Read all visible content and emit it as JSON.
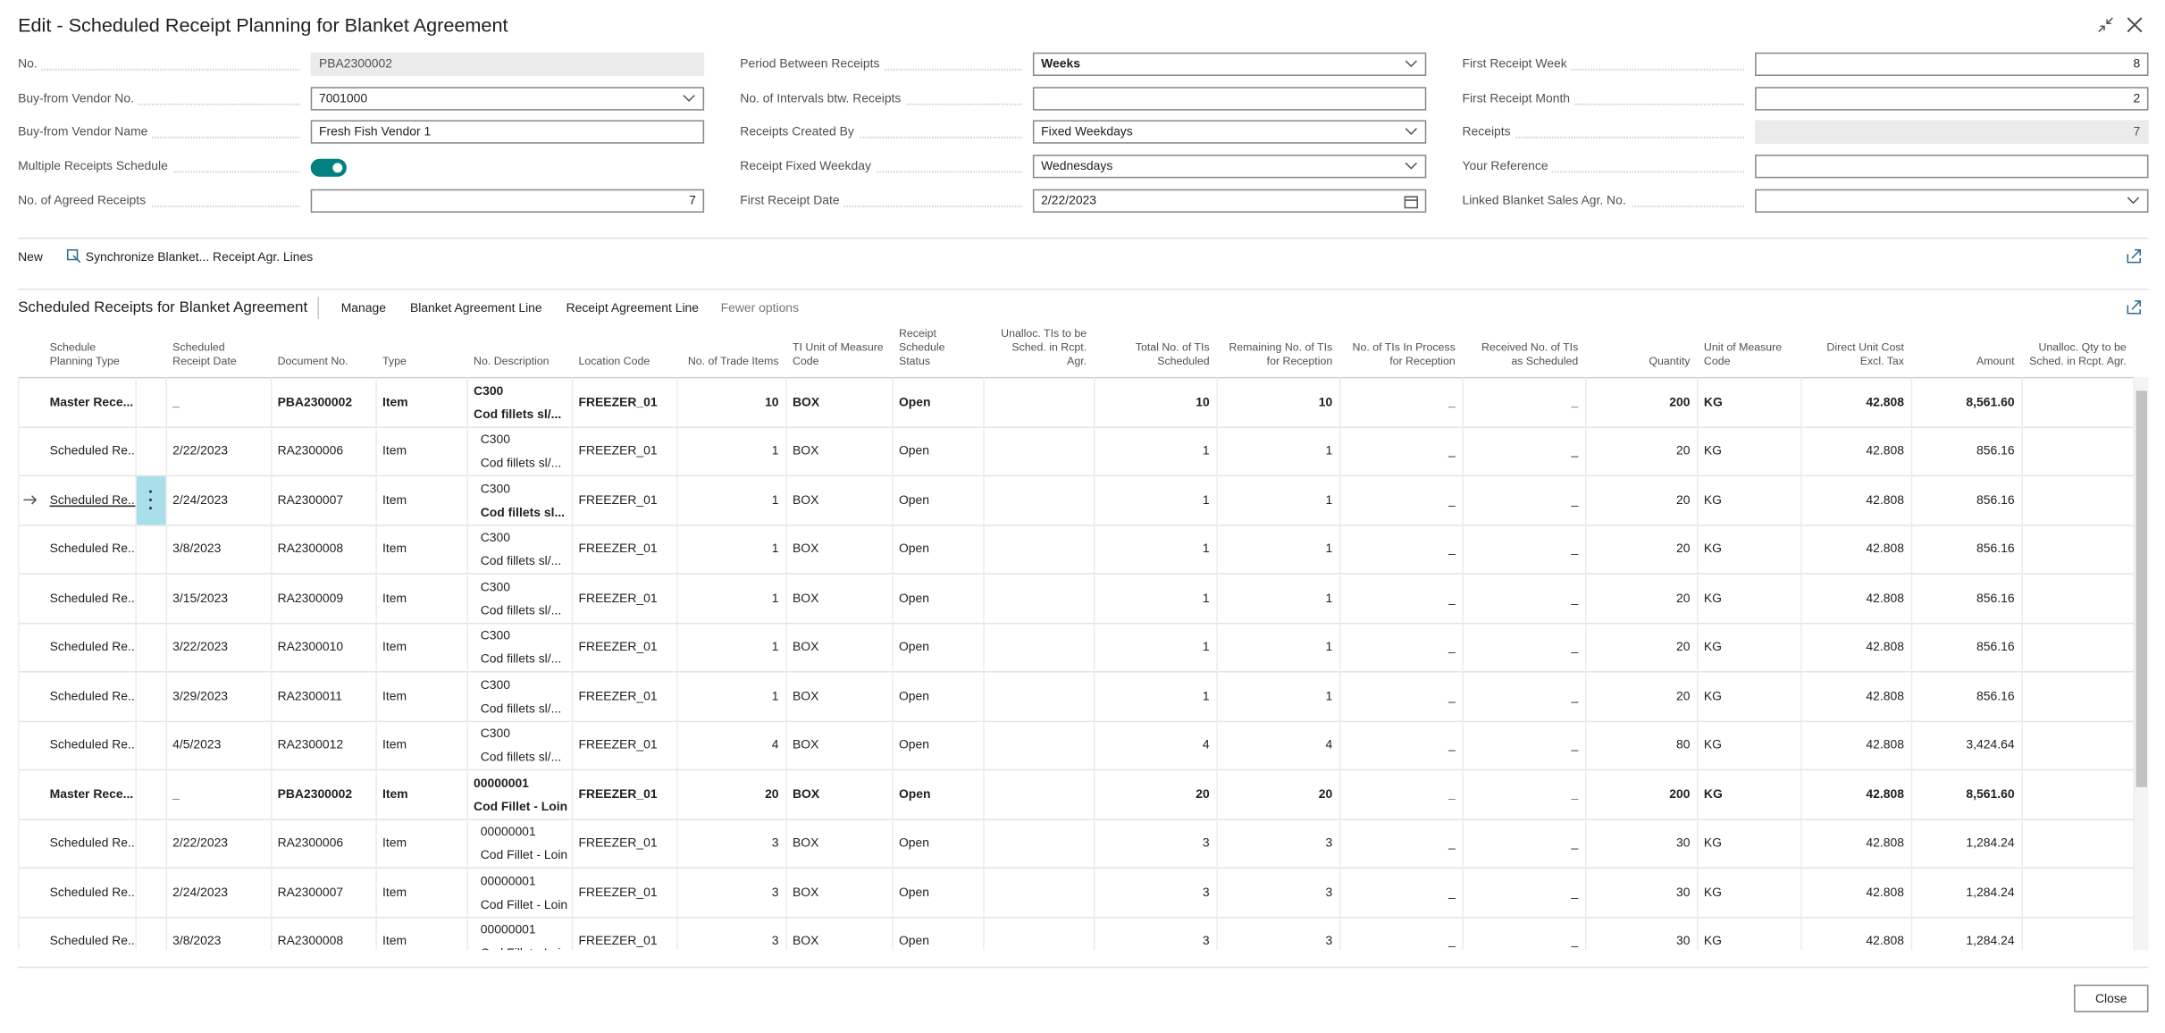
{
  "header": {
    "title": "Edit - Scheduled Receipt Planning for Blanket Agreement"
  },
  "field_columns": [
    [
      {
        "label": "No.",
        "value": "PBA2300002",
        "control": "readonly"
      },
      {
        "label": "Buy-from Vendor No.",
        "value": "7001000",
        "control": "dropdown"
      },
      {
        "label": "Buy-from Vendor Name",
        "value": "Fresh Fish Vendor 1",
        "control": "text"
      },
      {
        "label": "Multiple Receipts Schedule",
        "control": "toggle",
        "on": true
      },
      {
        "label": "No. of Agreed Receipts",
        "value": "7",
        "control": "text"
      }
    ],
    [
      {
        "label": "Period Between Receipts",
        "value": "Weeks",
        "control": "dropdown",
        "bold": true
      },
      {
        "label": "No. of Intervals btw. Receipts",
        "control": "text"
      },
      {
        "label": "Receipts Created By",
        "value": "Fixed Weekdays",
        "control": "dropdown"
      },
      {
        "label": "Receipt Fixed Weekday",
        "value": "Wednesdays",
        "control": "dropdown"
      },
      {
        "label": "First Receipt Date",
        "value": "2/22/2023",
        "control": "date"
      }
    ],
    [
      {
        "label": "First Receipt Week",
        "value": "8",
        "control": "text"
      },
      {
        "label": "First Receipt Month",
        "value": "2",
        "control": "text"
      },
      {
        "label": "Receipts",
        "value": "7",
        "control": "readonly"
      },
      {
        "label": "Your Reference",
        "control": "text"
      },
      {
        "label": "Linked Blanket Sales Agr. No.",
        "control": "dropdown"
      }
    ]
  ],
  "actions": {
    "new": "New",
    "synchronize": "Synchronize Blanket... Receipt Agr. Lines"
  },
  "table": {
    "title": "Scheduled Receipts for Blanket Agreement",
    "tabs": [
      "Manage",
      "Blanket Agreement Line",
      "Receipt Agreement Line",
      "Fewer options"
    ],
    "columns": [
      "Schedule Planning Type",
      "Scheduled Receipt Date",
      "Document No.",
      "Type",
      "No. Description",
      "Location Code",
      "No. of Trade Items",
      "TI Unit of Measure Code",
      "Receipt Schedule Status",
      "Unalloc. TIs to be Sched. in Rcpt. Agr.",
      "Total No. of TIs Scheduled",
      "Remaining No. of TIs for Reception",
      "No. of TIs In Process for Reception",
      "Received No. of TIs as Scheduled",
      "Quantity",
      "Unit of Measure Code",
      "Direct Unit Cost Excl. Tax",
      "Amount",
      "Unalloc. Qty to be Sched. in Rcpt. Agr."
    ],
    "rows": [
      {
        "bold": true,
        "cells": [
          "Master Rece...",
          "_",
          "PBA2300002",
          "Item",
          [
            "C300",
            "Cod fillets sl/..."
          ],
          "FREEZER_01",
          "10",
          "BOX",
          "Open",
          null,
          "10",
          "10",
          "_",
          "_",
          "200",
          "KG",
          "42.808",
          "8,561.60",
          null
        ]
      },
      {
        "cells": [
          "Scheduled Re...",
          "2/22/2023",
          "RA2300006",
          "Item",
          [
            "C300",
            "Cod fillets sl/..."
          ],
          "FREEZER_01",
          "1",
          "BOX",
          "Open",
          null,
          "1",
          "1",
          "_",
          "_",
          "20",
          "KG",
          "42.808",
          "856.16",
          null
        ]
      },
      {
        "selected": true,
        "cells": [
          "Scheduled Re...",
          "2/24/2023",
          "RA2300007",
          "Item",
          [
            "C300",
            "Cod fillets sl..."
          ],
          "FREEZER_01",
          "1",
          "BOX",
          "Open",
          null,
          "1",
          "1",
          "_",
          "_",
          "20",
          "KG",
          "42.808",
          "856.16",
          null
        ]
      },
      {
        "cells": [
          "Scheduled Re...",
          "3/8/2023",
          "RA2300008",
          "Item",
          [
            "C300",
            "Cod fillets sl/..."
          ],
          "FREEZER_01",
          "1",
          "BOX",
          "Open",
          null,
          "1",
          "1",
          "_",
          "_",
          "20",
          "KG",
          "42.808",
          "856.16",
          null
        ]
      },
      {
        "cells": [
          "Scheduled Re...",
          "3/15/2023",
          "RA2300009",
          "Item",
          [
            "C300",
            "Cod fillets sl/..."
          ],
          "FREEZER_01",
          "1",
          "BOX",
          "Open",
          null,
          "1",
          "1",
          "_",
          "_",
          "20",
          "KG",
          "42.808",
          "856.16",
          null
        ]
      },
      {
        "cells": [
          "Scheduled Re...",
          "3/22/2023",
          "RA2300010",
          "Item",
          [
            "C300",
            "Cod fillets sl/..."
          ],
          "FREEZER_01",
          "1",
          "BOX",
          "Open",
          null,
          "1",
          "1",
          "_",
          "_",
          "20",
          "KG",
          "42.808",
          "856.16",
          null
        ]
      },
      {
        "cells": [
          "Scheduled Re...",
          "3/29/2023",
          "RA2300011",
          "Item",
          [
            "C300",
            "Cod fillets sl/..."
          ],
          "FREEZER_01",
          "1",
          "BOX",
          "Open",
          null,
          "1",
          "1",
          "_",
          "_",
          "20",
          "KG",
          "42.808",
          "856.16",
          null
        ]
      },
      {
        "cells": [
          "Scheduled Re...",
          "4/5/2023",
          "RA2300012",
          "Item",
          [
            "C300",
            "Cod fillets sl/..."
          ],
          "FREEZER_01",
          "4",
          "BOX",
          "Open",
          null,
          "4",
          "4",
          "_",
          "_",
          "80",
          "KG",
          "42.808",
          "3,424.64",
          null
        ]
      },
      {
        "bold": true,
        "cells": [
          "Master Rece...",
          "_",
          "PBA2300002",
          "Item",
          [
            "00000001",
            "Cod Fillet - Loin"
          ],
          "FREEZER_01",
          "20",
          "BOX",
          "Open",
          null,
          "20",
          "20",
          "_",
          "_",
          "200",
          "KG",
          "42.808",
          "8,561.60",
          null
        ]
      },
      {
        "cells": [
          "Scheduled Re...",
          "2/22/2023",
          "RA2300006",
          "Item",
          [
            "00000001",
            "Cod Fillet - Loin"
          ],
          "FREEZER_01",
          "3",
          "BOX",
          "Open",
          null,
          "3",
          "3",
          "_",
          "_",
          "30",
          "KG",
          "42.808",
          "1,284.24",
          null
        ]
      },
      {
        "cells": [
          "Scheduled Re...",
          "2/24/2023",
          "RA2300007",
          "Item",
          [
            "00000001",
            "Cod Fillet - Loin"
          ],
          "FREEZER_01",
          "3",
          "BOX",
          "Open",
          null,
          "3",
          "3",
          "_",
          "_",
          "30",
          "KG",
          "42.808",
          "1,284.24",
          null
        ]
      },
      {
        "cells": [
          "Scheduled Re...",
          "3/8/2023",
          "RA2300008",
          "Item",
          [
            "00000001",
            "Cod Fillet - Loin"
          ],
          "FREEZER_01",
          "3",
          "BOX",
          "Open",
          null,
          "3",
          "3",
          "_",
          "_",
          "30",
          "KG",
          "42.808",
          "1,284.24",
          null
        ]
      }
    ]
  },
  "footer": {
    "close": "Close"
  }
}
